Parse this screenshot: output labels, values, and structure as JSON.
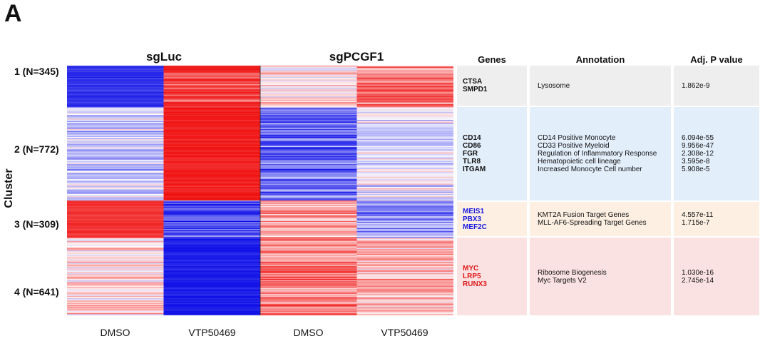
{
  "panel_label": "A",
  "chart_data": {
    "type": "heatmap",
    "ylabel": "Cluster",
    "groups": [
      "sgLuc",
      "sgPCGF1"
    ],
    "columns": [
      "DMSO",
      "VTP50469",
      "DMSO",
      "VTP50469"
    ],
    "clusters": [
      {
        "label": "1 (N=345)",
        "n": 345,
        "levels": [
          -0.85,
          0.8,
          0.2,
          0.55
        ]
      },
      {
        "label": "2 (N=772)",
        "n": 772,
        "levels": [
          -0.2,
          0.95,
          -0.6,
          -0.1
        ]
      },
      {
        "label": "3 (N=309)",
        "n": 309,
        "levels": [
          0.85,
          -0.75,
          0.4,
          -0.45
        ]
      },
      {
        "label": "4 (N=641)",
        "n": 641,
        "levels": [
          0.15,
          -0.95,
          0.55,
          0.3
        ]
      }
    ],
    "colors": {
      "low": "#1010e8",
      "mid": "#ffffff",
      "high": "#f01010"
    }
  },
  "table": {
    "headers": {
      "genes": "Genes",
      "annotation": "Annotation",
      "pvalue": "Adj. P value"
    },
    "rows": [
      {
        "genes": [
          "CTSA",
          "SMPD1"
        ],
        "gene_color": "#111111",
        "bg": "#eeeeee",
        "annotations": [
          "Lysosome"
        ],
        "pvalues": [
          "1.862e-9"
        ]
      },
      {
        "genes": [
          "CD14",
          "CD86",
          "FGR",
          "TLR8",
          "ITGAM"
        ],
        "gene_color": "#111111",
        "bg": "#e3eefb",
        "annotations": [
          "CD14 Positive Monocyte",
          "CD33 Positive Myeloid",
          "Regulation of Inflammatory Response",
          "Hematopoietic cell lineage",
          "Increased Monocyte Cell number"
        ],
        "pvalues": [
          "6.094e-55",
          "9.956e-47",
          "2.308e-12",
          "3.595e-8",
          "5.908e-5"
        ]
      },
      {
        "genes": [
          "MEIS1",
          "PBX3",
          "MEF2C"
        ],
        "gene_color": "#1a1ae0",
        "bg": "#fdf0e3",
        "annotations": [
          "KMT2A Fusion Target Genes",
          "MLL-AF6-Spreading Target Genes"
        ],
        "pvalues": [
          "4.557e-11",
          "1.715e-7"
        ]
      },
      {
        "genes": [
          "MYC",
          "LRP5",
          "RUNX3"
        ],
        "gene_color": "#e01818",
        "bg": "#fbe2e2",
        "annotations": [
          "Ribosome Biogenesis",
          "Myc Targets V2"
        ],
        "pvalues": [
          "1.030e-16",
          "2.745e-14"
        ]
      }
    ]
  }
}
